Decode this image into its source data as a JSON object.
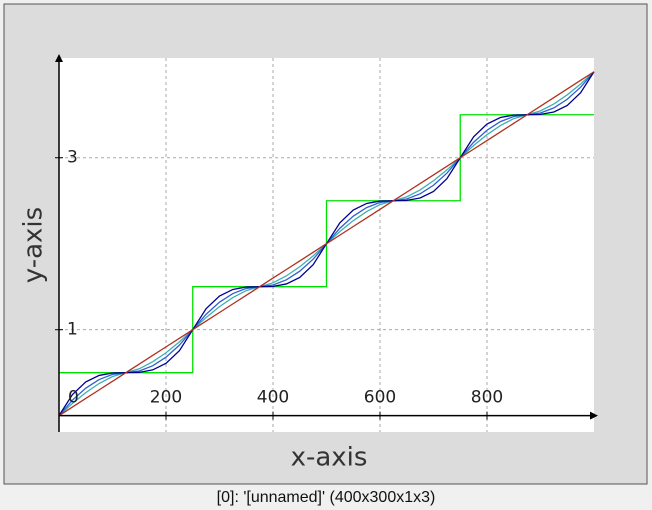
{
  "chart_data": {
    "type": "line",
    "xlabel": "x-axis",
    "ylabel": "y-axis",
    "footer": "[0]: '[unnamed]' (400x300x1x3)",
    "x": [
      0,
      25,
      50,
      75,
      100,
      125,
      150,
      175,
      200,
      225,
      250,
      275,
      300,
      325,
      350,
      375,
      400,
      425,
      450,
      475,
      500,
      525,
      550,
      575,
      600,
      625,
      650,
      675,
      700,
      725,
      750,
      775,
      800,
      825,
      850,
      875,
      900,
      925,
      950,
      975,
      1000
    ],
    "xlim": [
      0,
      1000
    ],
    "ylim": [
      -0.19,
      4.16
    ],
    "xticks": [
      0,
      200,
      400,
      600,
      800
    ],
    "yticks": [
      1,
      3
    ],
    "grid": true,
    "series": [
      {
        "color": "#00e000",
        "x": [
          0,
          250,
          250,
          500,
          500,
          750,
          750,
          1000
        ],
        "values": [
          0.5,
          0.5,
          1.5,
          1.5,
          2.5,
          2.5,
          3.5,
          3.5
        ]
      },
      {
        "color": "#40b0b0",
        "values": [
          0,
          0.142,
          0.268,
          0.374,
          0.455,
          0.5,
          0.545,
          0.626,
          0.732,
          0.858,
          1,
          1.142,
          1.268,
          1.374,
          1.455,
          1.5,
          1.545,
          1.626,
          1.732,
          1.858,
          2,
          2.142,
          2.268,
          2.374,
          2.455,
          2.5,
          2.545,
          2.626,
          2.732,
          2.858,
          3,
          3.142,
          3.268,
          3.374,
          3.455,
          3.5,
          3.545,
          3.626,
          3.732,
          3.858,
          4
        ]
      },
      {
        "color": "#3060d0",
        "values": [
          0,
          0.18,
          0.32,
          0.42,
          0.48,
          0.5,
          0.52,
          0.58,
          0.68,
          0.82,
          1,
          1.18,
          1.32,
          1.42,
          1.48,
          1.5,
          1.52,
          1.58,
          1.68,
          1.82,
          2,
          2.18,
          2.32,
          2.42,
          2.48,
          2.5,
          2.52,
          2.58,
          2.68,
          2.82,
          3,
          3.18,
          3.32,
          3.42,
          3.48,
          3.5,
          3.52,
          3.58,
          3.68,
          3.82,
          4
        ]
      },
      {
        "color": "#000090",
        "values": [
          0,
          0.244,
          0.392,
          0.468,
          0.496,
          0.5,
          0.504,
          0.532,
          0.608,
          0.756,
          1,
          1.244,
          1.392,
          1.468,
          1.496,
          1.5,
          1.504,
          1.532,
          1.608,
          1.756,
          2,
          2.244,
          2.392,
          2.468,
          2.496,
          2.5,
          2.504,
          2.532,
          2.608,
          2.756,
          3,
          3.244,
          3.392,
          3.468,
          3.496,
          3.5,
          3.504,
          3.532,
          3.608,
          3.756,
          4
        ]
      },
      {
        "color": "#b03020",
        "values": [
          0,
          0.1,
          0.2,
          0.3,
          0.4,
          0.5,
          0.6,
          0.7,
          0.8,
          0.9,
          1,
          1.1,
          1.2,
          1.3,
          1.4,
          1.5,
          1.6,
          1.7,
          1.8,
          1.9,
          2,
          2.1,
          2.2,
          2.3,
          2.4,
          2.5,
          2.6,
          2.7,
          2.8,
          2.9,
          3,
          3.1,
          3.2,
          3.3,
          3.4,
          3.5,
          3.6,
          3.7,
          3.8,
          3.9,
          4
        ]
      }
    ]
  }
}
